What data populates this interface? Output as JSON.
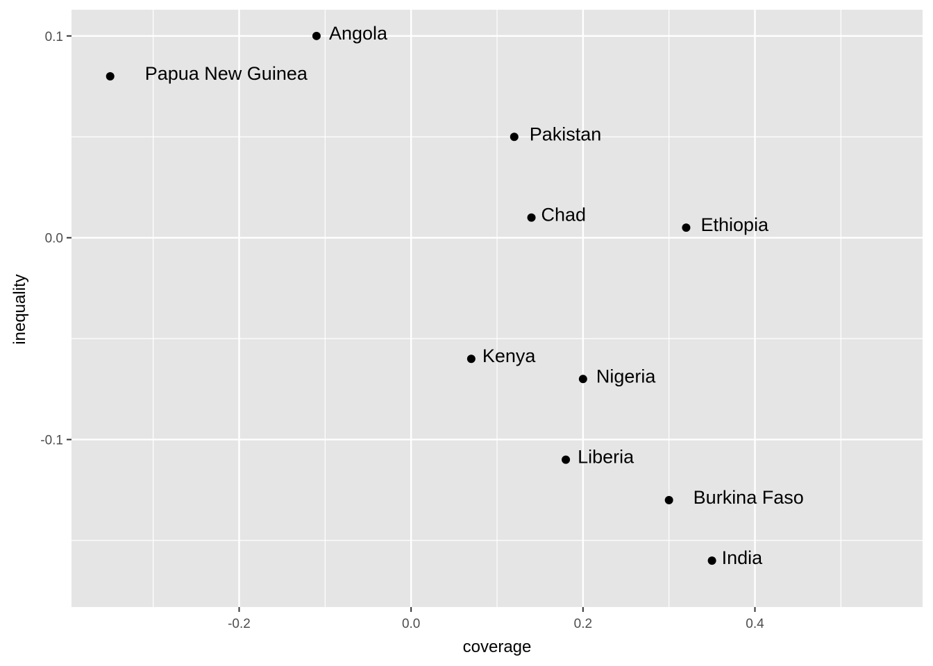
{
  "chart_data": {
    "type": "scatter",
    "xlabel": "coverage",
    "ylabel": "inequality",
    "xlim": [
      -0.395,
      0.595
    ],
    "ylim": [
      -0.183,
      0.113
    ],
    "x_major_ticks": [
      -0.2,
      0.0,
      0.2,
      0.4
    ],
    "x_tick_labels": [
      "-0.2",
      "0.0",
      "0.2",
      "0.4"
    ],
    "x_minor_ticks": [
      -0.3,
      -0.1,
      0.1,
      0.3,
      0.5
    ],
    "y_major_ticks": [
      0.1,
      0.0,
      -0.1
    ],
    "y_tick_labels": [
      "0.1",
      "0.0",
      "-0.1"
    ],
    "y_minor_ticks": [
      0.05,
      -0.05,
      -0.15
    ],
    "grid": true,
    "colors": {
      "panel": "#e5e5e5",
      "grid": "#ffffff",
      "point": "#000000",
      "tick_text": "#4d4d4d",
      "tick_mark": "#333333"
    },
    "points": [
      {
        "label": "Angola",
        "x": -0.11,
        "y": 0.1
      },
      {
        "label": "Papua New Guinea",
        "x": -0.35,
        "y": 0.08
      },
      {
        "label": "Pakistan",
        "x": 0.12,
        "y": 0.05
      },
      {
        "label": "Chad",
        "x": 0.14,
        "y": 0.01
      },
      {
        "label": "Ethiopia",
        "x": 0.32,
        "y": 0.005
      },
      {
        "label": "Kenya",
        "x": 0.07,
        "y": -0.06
      },
      {
        "label": "Nigeria",
        "x": 0.2,
        "y": -0.07
      },
      {
        "label": "Liberia",
        "x": 0.18,
        "y": -0.11
      },
      {
        "label": "Burkina Faso",
        "x": 0.3,
        "y": -0.13
      },
      {
        "label": "India",
        "x": 0.35,
        "y": -0.16
      }
    ]
  }
}
